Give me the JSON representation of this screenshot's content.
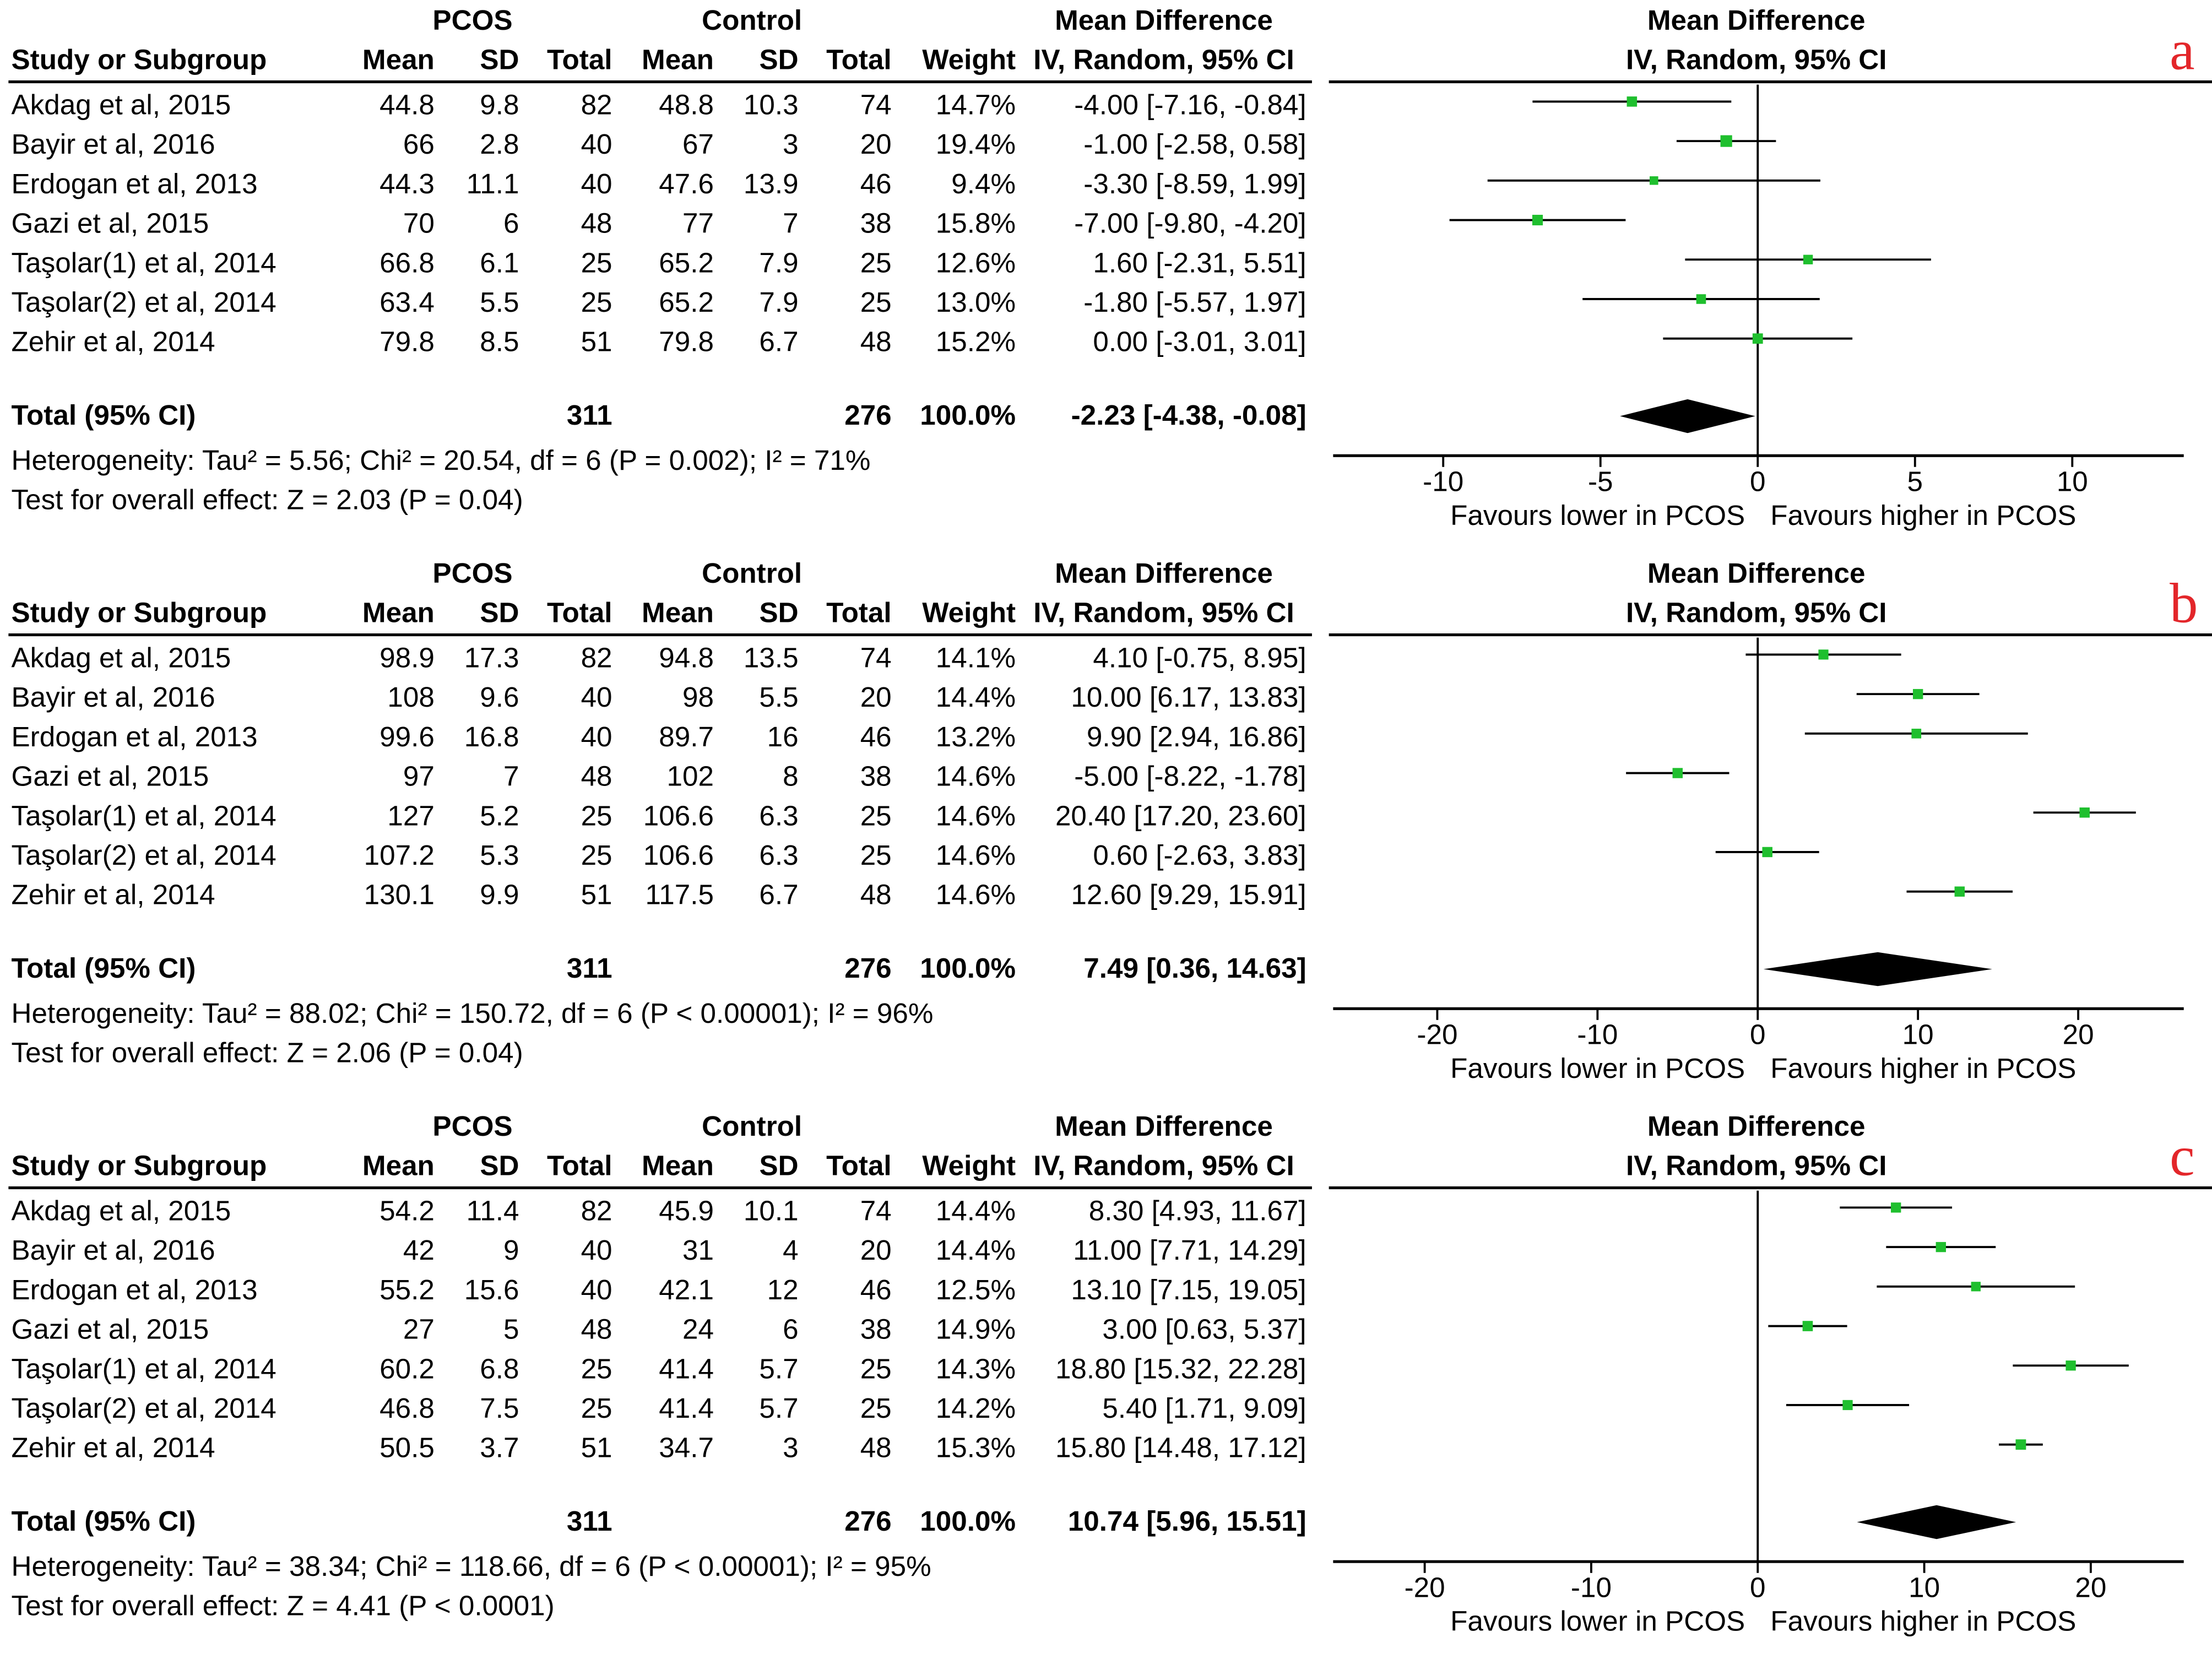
{
  "headers": {
    "group_pcos": "PCOS",
    "group_control": "Control",
    "study": "Study or Subgroup",
    "mean": "Mean",
    "sd": "SD",
    "total": "Total",
    "weight": "Weight",
    "md_title": "Mean Difference",
    "md_method": "IV, Random, 95% CI",
    "favours_lower": "Favours lower in PCOS",
    "favours_higher": "Favours higher in PCOS"
  },
  "colors": {
    "marker": "#1fbf2e",
    "letter": "#e3262a",
    "line": "#000000"
  },
  "panels": [
    {
      "label": "a",
      "total_label": "Total (95% CI)",
      "total_pcos": "311",
      "total_control": "276",
      "total_weight": "100.0%",
      "total_ci_text": "-2.23 [-4.38, -0.08]",
      "heterogeneity": "Heterogeneity: Tau² = 5.56; Chi² = 20.54, df = 6 (P = 0.002); I² = 71%",
      "overall": "Test for overall effect: Z = 2.03 (P = 0.04)",
      "studies": [
        {
          "study": "Akdag et al, 2015",
          "pm": "44.8",
          "psd": "9.8",
          "pt": "82",
          "cm": "48.8",
          "csd": "10.3",
          "ct": "74",
          "weight": "14.7%",
          "ci_text": "-4.00 [-7.16, -0.84]"
        },
        {
          "study": "Bayir et al, 2016",
          "pm": "66",
          "psd": "2.8",
          "pt": "40",
          "cm": "67",
          "csd": "3",
          "ct": "20",
          "weight": "19.4%",
          "ci_text": "-1.00 [-2.58, 0.58]"
        },
        {
          "study": "Erdogan et al, 2013",
          "pm": "44.3",
          "psd": "11.1",
          "pt": "40",
          "cm": "47.6",
          "csd": "13.9",
          "ct": "46",
          "weight": "9.4%",
          "ci_text": "-3.30 [-8.59, 1.99]"
        },
        {
          "study": "Gazi et al, 2015",
          "pm": "70",
          "psd": "6",
          "pt": "48",
          "cm": "77",
          "csd": "7",
          "ct": "38",
          "weight": "15.8%",
          "ci_text": "-7.00 [-9.80, -4.20]"
        },
        {
          "study": "Taşolar(1) et al,  2014",
          "pm": "66.8",
          "psd": "6.1",
          "pt": "25",
          "cm": "65.2",
          "csd": "7.9",
          "ct": "25",
          "weight": "12.6%",
          "ci_text": "1.60 [-2.31, 5.51]"
        },
        {
          "study": "Taşolar(2) et al, 2014",
          "pm": "63.4",
          "psd": "5.5",
          "pt": "25",
          "cm": "65.2",
          "csd": "7.9",
          "ct": "25",
          "weight": "13.0%",
          "ci_text": "-1.80 [-5.57, 1.97]"
        },
        {
          "study": "Zehir et al, 2014",
          "pm": "79.8",
          "psd": "8.5",
          "pt": "51",
          "cm": "79.8",
          "csd": "6.7",
          "ct": "48",
          "weight": "15.2%",
          "ci_text": "0.00 [-3.01, 3.01]"
        }
      ]
    },
    {
      "label": "b",
      "total_label": "Total (95% CI)",
      "total_pcos": "311",
      "total_control": "276",
      "total_weight": "100.0%",
      "total_ci_text": "7.49 [0.36, 14.63]",
      "heterogeneity": "Heterogeneity: Tau² = 88.02; Chi² = 150.72, df = 6 (P < 0.00001); I² = 96%",
      "overall": "Test for overall effect: Z = 2.06 (P = 0.04)",
      "studies": [
        {
          "study": "Akdag et al, 2015",
          "pm": "98.9",
          "psd": "17.3",
          "pt": "82",
          "cm": "94.8",
          "csd": "13.5",
          "ct": "74",
          "weight": "14.1%",
          "ci_text": "4.10 [-0.75, 8.95]"
        },
        {
          "study": "Bayir et al, 2016",
          "pm": "108",
          "psd": "9.6",
          "pt": "40",
          "cm": "98",
          "csd": "5.5",
          "ct": "20",
          "weight": "14.4%",
          "ci_text": "10.00 [6.17, 13.83]"
        },
        {
          "study": "Erdogan et al, 2013",
          "pm": "99.6",
          "psd": "16.8",
          "pt": "40",
          "cm": "89.7",
          "csd": "16",
          "ct": "46",
          "weight": "13.2%",
          "ci_text": "9.90 [2.94, 16.86]"
        },
        {
          "study": "Gazi et al, 2015",
          "pm": "97",
          "psd": "7",
          "pt": "48",
          "cm": "102",
          "csd": "8",
          "ct": "38",
          "weight": "14.6%",
          "ci_text": "-5.00 [-8.22, -1.78]"
        },
        {
          "study": "Taşolar(1) et al,  2014",
          "pm": "127",
          "psd": "5.2",
          "pt": "25",
          "cm": "106.6",
          "csd": "6.3",
          "ct": "25",
          "weight": "14.6%",
          "ci_text": "20.40 [17.20, 23.60]"
        },
        {
          "study": "Taşolar(2) et al, 2014",
          "pm": "107.2",
          "psd": "5.3",
          "pt": "25",
          "cm": "106.6",
          "csd": "6.3",
          "ct": "25",
          "weight": "14.6%",
          "ci_text": "0.60 [-2.63, 3.83]"
        },
        {
          "study": "Zehir et al, 2014",
          "pm": "130.1",
          "psd": "9.9",
          "pt": "51",
          "cm": "117.5",
          "csd": "6.7",
          "ct": "48",
          "weight": "14.6%",
          "ci_text": "12.60 [9.29, 15.91]"
        }
      ]
    },
    {
      "label": "c",
      "total_label": "Total (95% CI)",
      "total_pcos": "311",
      "total_control": "276",
      "total_weight": "100.0%",
      "total_ci_text": "10.74 [5.96, 15.51]",
      "heterogeneity": "Heterogeneity: Tau² = 38.34; Chi² = 118.66, df = 6 (P < 0.00001); I² = 95%",
      "overall": "Test for overall effect: Z = 4.41 (P < 0.0001)",
      "studies": [
        {
          "study": "Akdag et al, 2015",
          "pm": "54.2",
          "psd": "11.4",
          "pt": "82",
          "cm": "45.9",
          "csd": "10.1",
          "ct": "74",
          "weight": "14.4%",
          "ci_text": "8.30 [4.93, 11.67]"
        },
        {
          "study": "Bayir et al, 2016",
          "pm": "42",
          "psd": "9",
          "pt": "40",
          "cm": "31",
          "csd": "4",
          "ct": "20",
          "weight": "14.4%",
          "ci_text": "11.00 [7.71, 14.29]"
        },
        {
          "study": "Erdogan et al, 2013",
          "pm": "55.2",
          "psd": "15.6",
          "pt": "40",
          "cm": "42.1",
          "csd": "12",
          "ct": "46",
          "weight": "12.5%",
          "ci_text": "13.10 [7.15, 19.05]"
        },
        {
          "study": "Gazi et al, 2015",
          "pm": "27",
          "psd": "5",
          "pt": "48",
          "cm": "24",
          "csd": "6",
          "ct": "38",
          "weight": "14.9%",
          "ci_text": "3.00 [0.63, 5.37]"
        },
        {
          "study": "Taşolar(1) et al,  2014",
          "pm": "60.2",
          "psd": "6.8",
          "pt": "25",
          "cm": "41.4",
          "csd": "5.7",
          "ct": "25",
          "weight": "14.3%",
          "ci_text": "18.80 [15.32, 22.28]"
        },
        {
          "study": "Taşolar(2) et al, 2014",
          "pm": "46.8",
          "psd": "7.5",
          "pt": "25",
          "cm": "41.4",
          "csd": "5.7",
          "ct": "25",
          "weight": "14.2%",
          "ci_text": "5.40 [1.71, 9.09]"
        },
        {
          "study": "Zehir et al, 2014",
          "pm": "50.5",
          "psd": "3.7",
          "pt": "51",
          "cm": "34.7",
          "csd": "3",
          "ct": "48",
          "weight": "15.3%",
          "ci_text": "15.80 [14.48, 17.12]"
        }
      ]
    }
  ],
  "chart_data": [
    {
      "type": "forest",
      "panel": "a",
      "xlabel_left": "Favours lower in PCOS",
      "xlabel_right": "Favours higher in PCOS",
      "xlim": [
        -13.5,
        13.8
      ],
      "xticks": [
        -10,
        -5,
        0,
        5,
        10
      ],
      "xtick_labels": [
        "-10",
        "-5",
        "0",
        "5",
        "10"
      ],
      "studies": [
        "Akdag et al, 2015",
        "Bayir et al, 2016",
        "Erdogan et al, 2013",
        "Gazi et al, 2015",
        "Taşolar(1) et al,  2014",
        "Taşolar(2) et al, 2014",
        "Zehir et al, 2014"
      ],
      "estimates": [
        -4.0,
        -1.0,
        -3.3,
        -7.0,
        1.6,
        -1.8,
        0.0
      ],
      "ci_lower": [
        -7.16,
        -2.58,
        -8.59,
        -9.8,
        -2.31,
        -5.57,
        -3.01
      ],
      "ci_upper": [
        -0.84,
        0.58,
        1.99,
        -4.2,
        5.51,
        1.97,
        3.01
      ],
      "weights": [
        14.7,
        19.4,
        9.4,
        15.8,
        12.6,
        13.0,
        15.2
      ],
      "pooled": {
        "estimate": -2.23,
        "lower": -4.38,
        "upper": -0.08
      }
    },
    {
      "type": "forest",
      "panel": "b",
      "xlabel_left": "Favours lower in PCOS",
      "xlabel_right": "Favours higher in PCOS",
      "xlim": [
        -26.5,
        27.0
      ],
      "xticks": [
        -20,
        -10,
        0,
        10,
        20
      ],
      "xtick_labels": [
        "-20",
        "-10",
        "0",
        "10",
        "20"
      ],
      "studies": [
        "Akdag et al, 2015",
        "Bayir et al, 2016",
        "Erdogan et al, 2013",
        "Gazi et al, 2015",
        "Taşolar(1) et al,  2014",
        "Taşolar(2) et al, 2014",
        "Zehir et al, 2014"
      ],
      "estimates": [
        4.1,
        10.0,
        9.9,
        -5.0,
        20.4,
        0.6,
        12.6
      ],
      "ci_lower": [
        -0.75,
        6.17,
        2.94,
        -8.22,
        17.2,
        -2.63,
        9.29
      ],
      "ci_upper": [
        8.95,
        13.83,
        16.86,
        -1.78,
        23.6,
        3.83,
        15.91
      ],
      "weights": [
        14.1,
        14.4,
        13.2,
        14.6,
        14.6,
        14.6,
        14.6
      ],
      "pooled": {
        "estimate": 7.49,
        "lower": 0.36,
        "upper": 14.63
      }
    },
    {
      "type": "forest",
      "panel": "c",
      "xlabel_left": "Favours lower in PCOS",
      "xlabel_right": "Favours higher in PCOS",
      "xlim": [
        -25.5,
        23.8
      ],
      "xticks": [
        -20,
        -10,
        0,
        10,
        20
      ],
      "xtick_labels": [
        "-20",
        "-10",
        "0",
        "10",
        "20"
      ],
      "studies": [
        "Akdag et al, 2015",
        "Bayir et al, 2016",
        "Erdogan et al, 2013",
        "Gazi et al, 2015",
        "Taşolar(1) et al,  2014",
        "Taşolar(2) et al, 2014",
        "Zehir et al, 2014"
      ],
      "estimates": [
        8.3,
        11.0,
        13.1,
        3.0,
        18.8,
        5.4,
        15.8
      ],
      "ci_lower": [
        4.93,
        7.71,
        7.15,
        0.63,
        15.32,
        1.71,
        14.48
      ],
      "ci_upper": [
        11.67,
        14.29,
        19.05,
        5.37,
        22.28,
        9.09,
        17.12
      ],
      "weights": [
        14.4,
        14.4,
        12.5,
        14.9,
        14.3,
        14.2,
        15.3
      ],
      "pooled": {
        "estimate": 10.74,
        "lower": 5.96,
        "upper": 15.51
      }
    }
  ]
}
